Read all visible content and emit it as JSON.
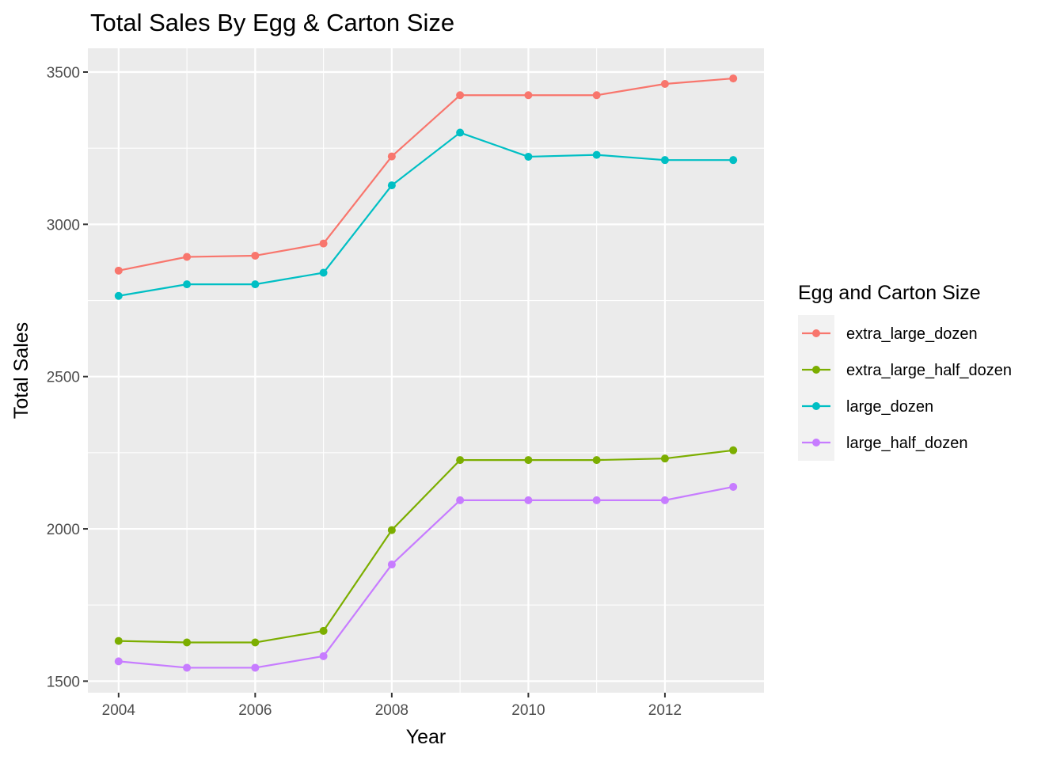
{
  "chart_data": {
    "type": "line",
    "title": "Total Sales By Egg & Carton Size",
    "xlabel": "Year",
    "ylabel": "Total Sales",
    "xlim": [
      2003.55,
      2013.45
    ],
    "ylim": [
      1462,
      3578
    ],
    "x_ticks": [
      2004,
      2006,
      2008,
      2010,
      2012
    ],
    "y_ticks": [
      1500,
      2000,
      2500,
      3000,
      3500
    ],
    "grid": true,
    "legend": {
      "title": "Egg and Carton Size",
      "position": "right"
    },
    "x": [
      2004,
      2005,
      2006,
      2007,
      2008,
      2009,
      2010,
      2011,
      2012,
      2013
    ],
    "series": [
      {
        "name": "extra_large_dozen",
        "color": "#F8766D",
        "values": [
          2848,
          2893,
          2897,
          2937,
          3223,
          3424,
          3424,
          3424,
          3461,
          3479
        ]
      },
      {
        "name": "extra_large_half_dozen",
        "color": "#7CAE00",
        "values": [
          1632,
          1627,
          1627,
          1665,
          1996,
          2226,
          2226,
          2226,
          2231,
          2258
        ]
      },
      {
        "name": "large_dozen",
        "color": "#00BFC4",
        "values": [
          2765,
          2803,
          2803,
          2841,
          3128,
          3301,
          3222,
          3228,
          3211,
          3211
        ]
      },
      {
        "name": "large_half_dozen",
        "color": "#C77CFF",
        "values": [
          1565,
          1544,
          1544,
          1582,
          1883,
          2094,
          2094,
          2094,
          2094,
          2138
        ]
      }
    ]
  }
}
